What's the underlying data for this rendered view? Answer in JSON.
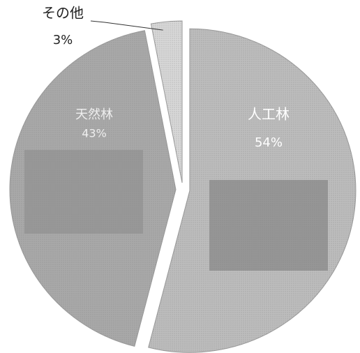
{
  "chart_data": {
    "type": "pie",
    "categories": [
      "人工林",
      "天然林",
      "その他"
    ],
    "values": [
      54,
      43,
      3
    ],
    "value_labels": [
      "54%",
      "43%",
      "3%"
    ],
    "colors": [
      "#bdbdbd",
      "#a9a9a9",
      "#d8d8d8"
    ]
  }
}
